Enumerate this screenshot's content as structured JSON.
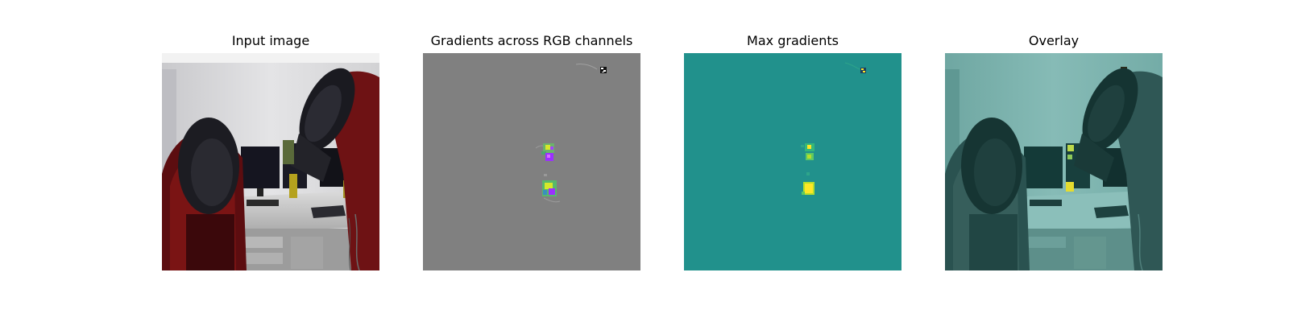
{
  "figure": {
    "panels": [
      {
        "title": "Input image"
      },
      {
        "title": "Gradients across RGB channels"
      },
      {
        "title": "Max gradients"
      },
      {
        "title": "Overlay"
      }
    ]
  },
  "colors": {
    "background": "#ffffff",
    "max_gradient_base": "#21918c",
    "rgb_gradient_base": "#808080",
    "highlight_yellow": "#fde725",
    "highlight_green": "#5ec962",
    "highlight_purple": "#9b30ff",
    "overlay_tint": "#2a6f6b",
    "robot_red": "#7a1414"
  }
}
